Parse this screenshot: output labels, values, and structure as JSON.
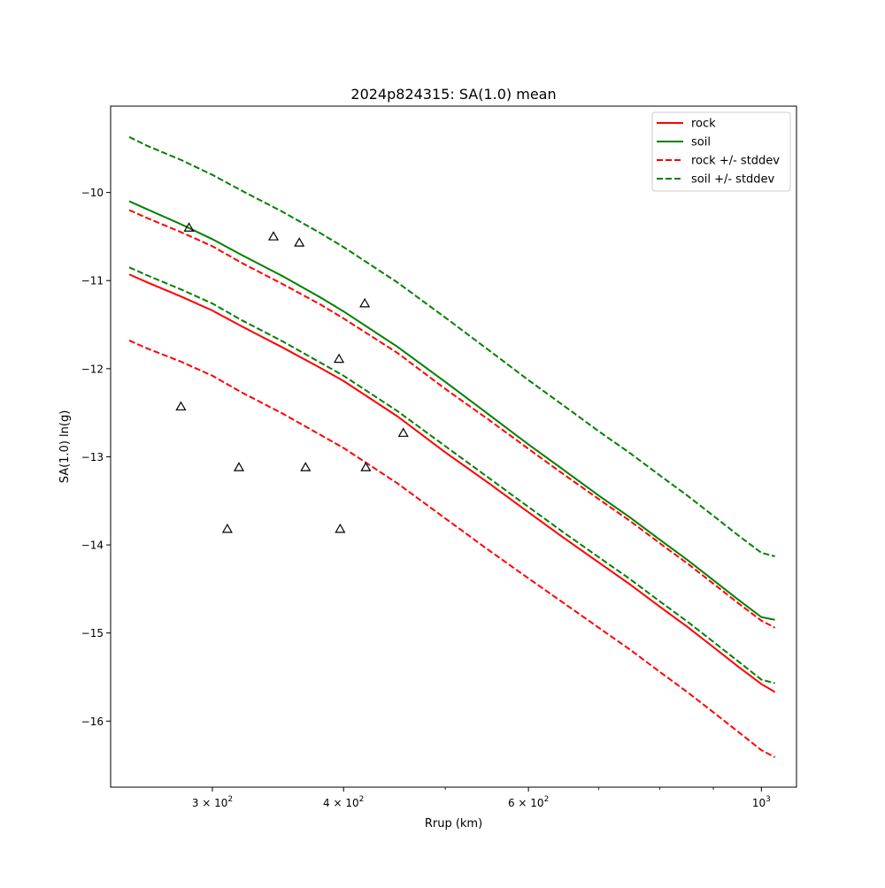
{
  "chart_data": {
    "type": "line",
    "title": "2024p824315: SA(1.0) mean",
    "xlabel": "Rrup (km)",
    "ylabel": "SA(1.0) ln(g)",
    "xscale": "log",
    "xlim": [
      240,
      1080
    ],
    "ylim": [
      -16.75,
      -9.02
    ],
    "grid": false,
    "legend_position": "top-right",
    "x_ticks": [
      {
        "value": 300,
        "base": "3 × 10",
        "exp": "2"
      },
      {
        "value": 400,
        "base": "4 × 10",
        "exp": "2"
      },
      {
        "value": 600,
        "base": "6 × 10",
        "exp": "2"
      },
      {
        "value": 1000,
        "base": "10",
        "exp": "3"
      }
    ],
    "x_minor_ticks": [
      500,
      700,
      800,
      900
    ],
    "y_ticks": [
      -16,
      -15,
      -14,
      -13,
      -12,
      -11,
      -10
    ],
    "y_tick_labels": [
      "−16",
      "−15",
      "−14",
      "−13",
      "−12",
      "−11",
      "−10"
    ],
    "x": [
      250,
      260,
      280,
      300,
      320,
      350,
      380,
      400,
      450,
      500,
      550,
      600,
      650,
      700,
      750,
      800,
      850,
      900,
      950,
      1000,
      1030
    ],
    "series": [
      {
        "name": "rock",
        "color": "#ff0000",
        "dash": "solid",
        "values": [
          -10.93,
          -11.02,
          -11.18,
          -11.34,
          -11.52,
          -11.76,
          -11.99,
          -12.14,
          -12.54,
          -12.95,
          -13.3,
          -13.63,
          -13.93,
          -14.2,
          -14.45,
          -14.7,
          -14.93,
          -15.16,
          -15.38,
          -15.58,
          -15.67
        ]
      },
      {
        "name": "soil",
        "color": "#008000",
        "dash": "solid",
        "values": [
          -10.1,
          -10.19,
          -10.36,
          -10.53,
          -10.71,
          -10.95,
          -11.19,
          -11.35,
          -11.75,
          -12.15,
          -12.52,
          -12.86,
          -13.16,
          -13.44,
          -13.69,
          -13.94,
          -14.17,
          -14.4,
          -14.62,
          -14.82,
          -14.85
        ]
      },
      {
        "name": "rock +/- stddev",
        "color": "#ff0000",
        "dash": "dashed",
        "values": [
          -10.2,
          -10.29,
          -10.45,
          -10.61,
          -10.8,
          -11.04,
          -11.27,
          -11.43,
          -11.82,
          -12.23,
          -12.58,
          -12.91,
          -13.21,
          -13.48,
          -13.73,
          -13.98,
          -14.21,
          -14.44,
          -14.66,
          -14.86,
          -14.94
        ]
      },
      {
        "name": "rock +/- stddev",
        "color": "#ff0000",
        "dash": "dashed",
        "show_in_legend": false,
        "values": [
          -11.68,
          -11.77,
          -11.92,
          -12.08,
          -12.27,
          -12.51,
          -12.75,
          -12.9,
          -13.3,
          -13.7,
          -14.06,
          -14.38,
          -14.67,
          -14.94,
          -15.19,
          -15.44,
          -15.67,
          -15.9,
          -16.12,
          -16.33,
          -16.41
        ]
      },
      {
        "name": "soil +/- stddev",
        "color": "#008000",
        "dash": "dashed",
        "values": [
          -9.37,
          -9.47,
          -9.63,
          -9.8,
          -9.98,
          -10.22,
          -10.46,
          -10.62,
          -11.02,
          -11.42,
          -11.79,
          -12.13,
          -12.43,
          -12.71,
          -12.96,
          -13.21,
          -13.44,
          -13.67,
          -13.89,
          -14.09,
          -14.13
        ]
      },
      {
        "name": "soil +/- stddev",
        "color": "#008000",
        "dash": "dashed",
        "show_in_legend": false,
        "values": [
          -10.85,
          -10.94,
          -11.1,
          -11.26,
          -11.45,
          -11.69,
          -11.93,
          -12.08,
          -12.48,
          -12.88,
          -13.24,
          -13.57,
          -13.87,
          -14.14,
          -14.39,
          -14.64,
          -14.87,
          -15.1,
          -15.32,
          -15.53,
          -15.57
        ]
      }
    ],
    "observations": {
      "marker": "triangle",
      "color": "#000000",
      "points": [
        {
          "x": 285,
          "y": -10.4
        },
        {
          "x": 280,
          "y": -12.43
        },
        {
          "x": 310,
          "y": -13.82
        },
        {
          "x": 318,
          "y": -13.12
        },
        {
          "x": 343,
          "y": -10.5
        },
        {
          "x": 363,
          "y": -10.57
        },
        {
          "x": 368,
          "y": -13.12
        },
        {
          "x": 396,
          "y": -11.89
        },
        {
          "x": 397,
          "y": -13.82
        },
        {
          "x": 419,
          "y": -11.26
        },
        {
          "x": 420,
          "y": -13.12
        },
        {
          "x": 456,
          "y": -12.73
        }
      ]
    }
  }
}
